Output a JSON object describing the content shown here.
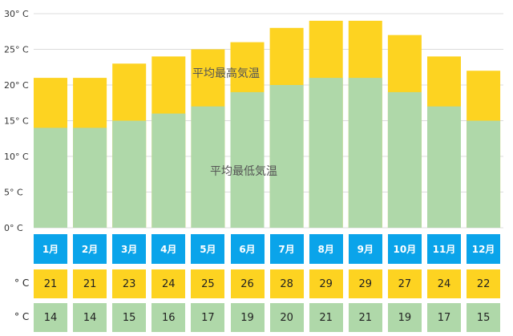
{
  "chart_data": {
    "type": "bar",
    "categories": [
      "1月",
      "2月",
      "3月",
      "4月",
      "5月",
      "6月",
      "7月",
      "8月",
      "9月",
      "10月",
      "11月",
      "12月"
    ],
    "series": [
      {
        "name": "平均最高気温",
        "values": [
          21,
          21,
          23,
          24,
          25,
          26,
          28,
          29,
          29,
          27,
          24,
          22
        ],
        "color": "#fdd321"
      },
      {
        "name": "平均最低気温",
        "values": [
          14,
          14,
          15,
          16,
          17,
          19,
          20,
          21,
          21,
          19,
          17,
          15
        ],
        "color": "#afd8a9"
      }
    ],
    "ylim": [
      0,
      30
    ],
    "yticks": [
      "0° C",
      "5° C",
      "10° C",
      "15° C",
      "20° C",
      "25° C",
      "30° C"
    ],
    "grid": true,
    "month_color": "#0aa4ea"
  },
  "table": {
    "high_unit": "° C",
    "low_unit": "° C"
  }
}
